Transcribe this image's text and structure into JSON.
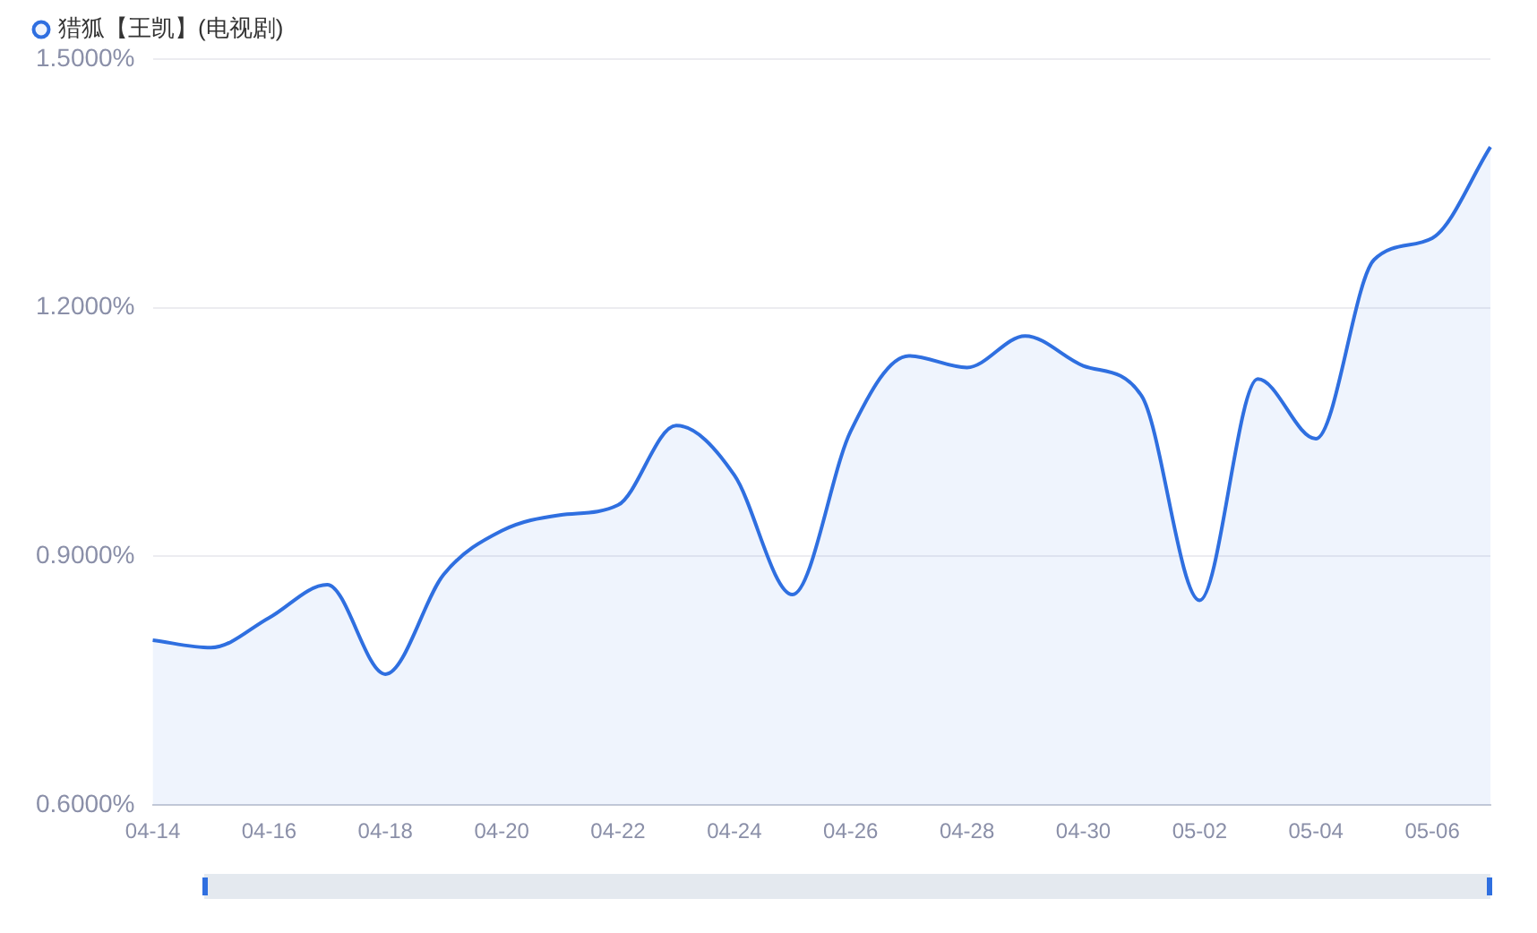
{
  "chart_data": {
    "type": "area",
    "categories": [
      "04-14",
      null,
      "04-16",
      null,
      "04-18",
      null,
      "04-20",
      null,
      "04-22",
      null,
      "04-24",
      null,
      "04-26",
      null,
      "04-28",
      null,
      "04-30",
      null,
      "05-02",
      null,
      "05-04",
      null,
      "05-06",
      null
    ],
    "series": [
      {
        "name": "猎狐【王凯】(电视剧)",
        "color": "#2f6fe0",
        "values": [
          0.799,
          0.79,
          0.826,
          0.866,
          0.758,
          0.878,
          0.931,
          0.95,
          0.962,
          1.058,
          0.998,
          0.854,
          1.051,
          1.142,
          1.128,
          1.166,
          1.13,
          1.094,
          0.847,
          1.114,
          1.042,
          1.258,
          1.284,
          1.394
        ]
      }
    ],
    "ylim": [
      0.6,
      1.5
    ],
    "yticks": [
      {
        "value": 0.6,
        "label": "0.6000%"
      },
      {
        "value": 0.9,
        "label": "0.9000%"
      },
      {
        "value": 1.2,
        "label": "1.2000%"
      },
      {
        "value": 1.5,
        "label": "1.5000%"
      }
    ],
    "grid": "y",
    "legend": "top left",
    "marker": "none"
  }
}
